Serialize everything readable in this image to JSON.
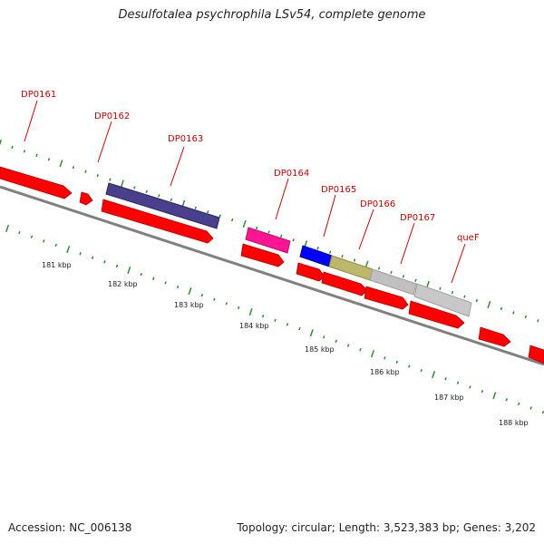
{
  "title": "Desulfotalea psychrophila LSv54, complete genome",
  "footer": {
    "accession": "Accession: NC_006138",
    "stats": "Topology: circular; Length: 3,523,383 bp; Genes: 3,202"
  },
  "gene_labels": [
    "DP0161",
    "DP0162",
    "DP0163",
    "DP0164",
    "DP0165",
    "DP0166",
    "DP0167",
    "queF"
  ],
  "kbp_labels": [
    "181 kbp",
    "182 kbp",
    "183 kbp",
    "184 kbp",
    "185 kbp",
    "186 kbp",
    "187 kbp",
    "188 kbp"
  ],
  "colors": {
    "gene": "#ff0000",
    "backbone": "#808080",
    "tick": "#2e8b2e",
    "label": "#cc0000",
    "feature_purple": "#4a3f8c",
    "feature_pink": "#ff1493",
    "feature_blue": "#0000ff",
    "feature_olive": "#bdb76b",
    "feature_gray": "#c0c0c0"
  }
}
